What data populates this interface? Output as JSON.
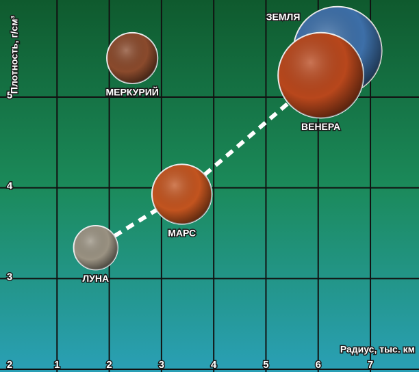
{
  "chart_data": {
    "type": "scatter",
    "x_label": "Радиус, тыс. км",
    "y_label": "Плотность, г/см³",
    "labels": [
      "ЛУНА",
      "МАРС",
      "МЕРКУРИЙ",
      "ЗЕМЛЯ",
      "ВЕНЕРА"
    ],
    "x": [
      1.74,
      3.39,
      2.44,
      6.37,
      6.05
    ],
    "values": [
      3.34,
      3.93,
      5.43,
      5.51,
      5.24
    ],
    "colors": [
      "#9a9282",
      "#c2541f",
      "#8a4a2c",
      "#3d6fa8",
      "#b8471c"
    ],
    "xlim": [
      0,
      7.93
    ],
    "ylim": [
      2,
      6.07
    ],
    "xticks": [
      1,
      2,
      3,
      4,
      5,
      6,
      7
    ],
    "yticks": [
      2,
      3,
      4,
      5
    ],
    "grid": true
  }
}
